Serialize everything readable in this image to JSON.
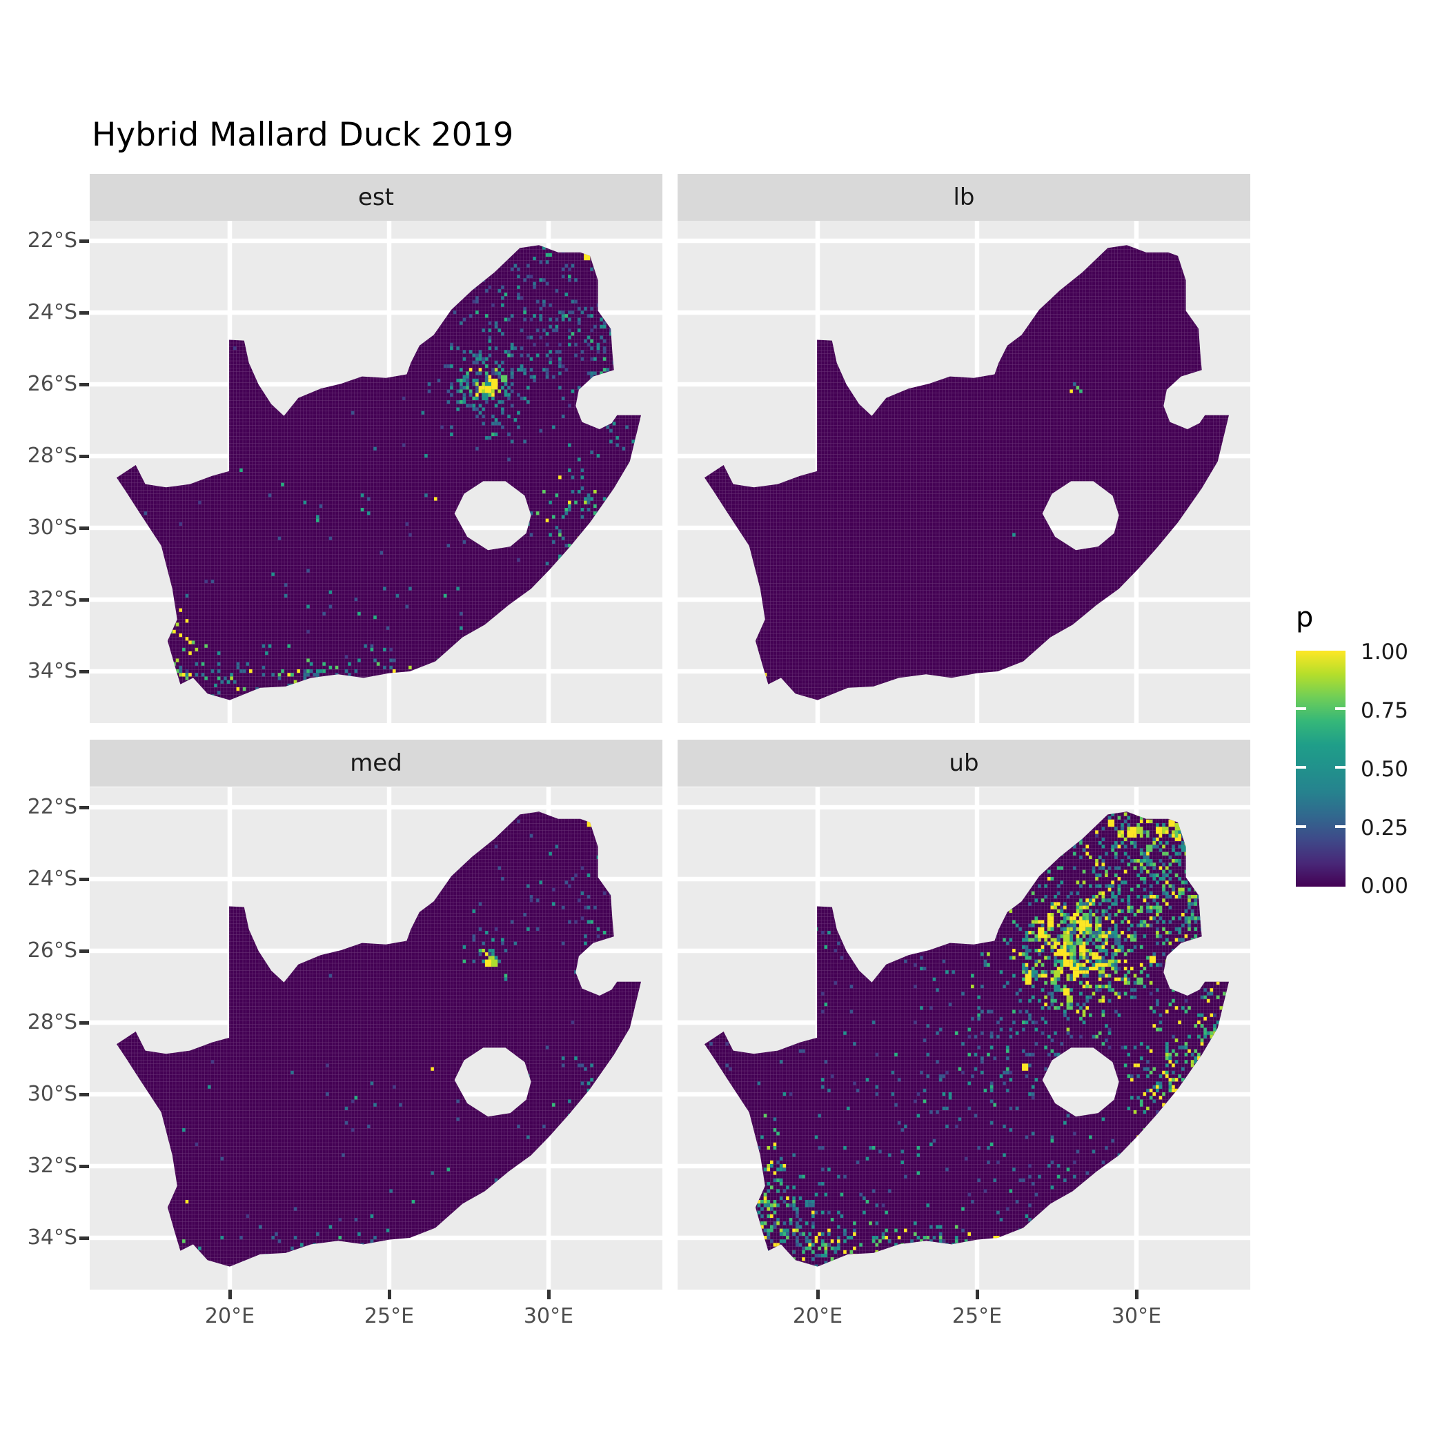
{
  "title": "Hybrid Mallard Duck 2019",
  "legend": {
    "title": "p",
    "tick_labels": [
      "1.00",
      "0.75",
      "0.50",
      "0.25",
      "0.00"
    ],
    "viridis_stops": [
      "#440154",
      "#482878",
      "#3e4a89",
      "#31688e",
      "#26828e",
      "#21918c",
      "#1f9e89",
      "#35b779",
      "#6ece58",
      "#b5de2b",
      "#fde725"
    ]
  },
  "chart_data": {
    "type": "faceted-raster-map",
    "title": "Hybrid Mallard Duck 2019",
    "region": "South Africa",
    "variable": "p",
    "value_range": [
      0,
      1
    ],
    "legend_breaks": [
      0.0,
      0.25,
      0.5,
      0.75,
      1.0
    ],
    "x_ticks": [
      {
        "label": "20°E",
        "lon": 20
      },
      {
        "label": "25°E",
        "lon": 25
      },
      {
        "label": "30°E",
        "lon": 30
      }
    ],
    "y_ticks": [
      {
        "label": "22°S",
        "lat": 22
      },
      {
        "label": "24°S",
        "lat": 24
      },
      {
        "label": "26°S",
        "lat": 26
      },
      {
        "label": "28°S",
        "lat": 28
      },
      {
        "label": "30°S",
        "lat": 30
      },
      {
        "label": "32°S",
        "lat": 32
      },
      {
        "label": "34°S",
        "lat": 34
      }
    ],
    "colors": {
      "base_cell": "#440154",
      "panel_bg": "#EBEBEB",
      "strip_bg": "#D9D9D9",
      "grid_line": "#FFFFFF",
      "axis_text": "#4D4D4D",
      "tick_mark": "#333333",
      "strip_text": "#1A1A1A"
    },
    "palettes": {
      "faint": [
        [
          "#3b528b",
          5
        ],
        [
          "#2c728e",
          3
        ],
        [
          "#21918c",
          2
        ],
        [
          "#443983",
          3
        ],
        [
          "#28ae80",
          1
        ]
      ],
      "teal": [
        [
          "#21918c",
          3
        ],
        [
          "#26828e",
          2
        ],
        [
          "#31688e",
          3
        ],
        [
          "#35b779",
          1
        ],
        [
          "#3b528b",
          2
        ]
      ],
      "mixGreen": [
        [
          "#21918c",
          3
        ],
        [
          "#2c728e",
          2
        ],
        [
          "#35b779",
          2
        ],
        [
          "#5ec962",
          1
        ],
        [
          "#addc30",
          1
        ],
        [
          "#fde725",
          1
        ],
        [
          "#31688e",
          2
        ]
      ],
      "coast": [
        [
          "#fde725",
          3
        ],
        [
          "#5ec962",
          2
        ],
        [
          "#21918c",
          3
        ],
        [
          "#2c728e",
          2
        ],
        [
          "#35b779",
          2
        ],
        [
          "#addc30",
          1
        ]
      ],
      "hot": [
        [
          "#fde725",
          5
        ],
        [
          "#addc30",
          2
        ],
        [
          "#5ec962",
          2
        ],
        [
          "#21918c",
          1
        ]
      ]
    },
    "facets": [
      {
        "label": "est",
        "clusters": [
          [
            28.0,
            26.0,
            0.75,
            0.65,
            170,
            "teal"
          ],
          [
            28.05,
            26.0,
            0.22,
            0.28,
            22,
            "hot"
          ],
          [
            30.1,
            24.1,
            1.7,
            1.15,
            240,
            "faint"
          ],
          [
            31.9,
            25.3,
            0.8,
            1.5,
            110,
            "teal"
          ],
          [
            31.05,
            29.7,
            0.65,
            0.9,
            70,
            "mixGreen"
          ],
          [
            22.3,
            34.15,
            2.5,
            0.3,
            130,
            "mixGreen"
          ],
          [
            18.5,
            33.7,
            0.3,
            0.6,
            35,
            "coast"
          ],
          [
            24.5,
            31.5,
            4.5,
            3.0,
            130,
            "faint"
          ]
        ],
        "singles": [
          [
            31.15,
            22.35,
            "#fde725",
            2
          ],
          [
            26.4,
            29.15,
            "#fde725",
            1
          ],
          [
            29.55,
            22.45,
            "#21918c",
            1
          ],
          [
            18.45,
            32.95,
            "#fde725",
            1
          ],
          [
            20.2,
            34.42,
            "#fde725",
            1
          ],
          [
            25.1,
            33.95,
            "#fde725",
            1
          ],
          [
            28.1,
            25.78,
            "#fde725",
            1
          ],
          [
            28.1,
            25.88,
            "#fde725",
            1
          ],
          [
            28.0,
            26.06,
            "#fde725",
            2
          ],
          [
            28.2,
            26.12,
            "#addc30",
            1
          ]
        ]
      },
      {
        "label": "lb",
        "clusters": [],
        "singles": [
          [
            27.95,
            26.1,
            "#fde725",
            1
          ],
          [
            28.1,
            26.02,
            "#5ec962",
            1
          ],
          [
            28.18,
            26.12,
            "#35b779",
            1
          ],
          [
            28.02,
            25.9,
            "#31688e",
            1
          ],
          [
            26.1,
            30.15,
            "#21918c",
            1
          ],
          [
            18.35,
            34.02,
            "#fde725",
            1
          ],
          [
            23.4,
            34.15,
            "#26828e",
            1
          ],
          [
            31.75,
            22.5,
            "#31688e",
            1
          ]
        ]
      },
      {
        "label": "med",
        "clusters": [
          [
            28.05,
            26.05,
            0.32,
            0.32,
            26,
            "teal"
          ],
          [
            28.05,
            26.02,
            0.12,
            0.15,
            7,
            "hot"
          ],
          [
            30.2,
            24.3,
            1.7,
            1.1,
            60,
            "faint"
          ],
          [
            31.9,
            25.5,
            0.7,
            1.3,
            40,
            "faint"
          ],
          [
            23.0,
            34.25,
            2.2,
            0.25,
            45,
            "teal"
          ],
          [
            31.0,
            30.0,
            0.5,
            0.8,
            28,
            "teal"
          ],
          [
            24.5,
            31.0,
            4.0,
            2.5,
            50,
            "faint"
          ]
        ],
        "singles": [
          [
            31.2,
            22.35,
            "#fde725",
            2
          ],
          [
            26.35,
            29.2,
            "#fde725",
            1
          ],
          [
            18.6,
            32.95,
            "#fde725",
            1
          ],
          [
            25.8,
            34.05,
            "#fde725",
            1
          ],
          [
            18.55,
            34.05,
            "#5ec962",
            1
          ],
          [
            30.6,
            30.55,
            "#21918c",
            1
          ]
        ]
      },
      {
        "label": "ub",
        "clusters": [
          [
            28.1,
            25.9,
            0.8,
            0.7,
            260,
            "hot"
          ],
          [
            28.0,
            26.05,
            1.4,
            1.0,
            300,
            "mixGreen"
          ],
          [
            30.3,
            23.9,
            1.8,
            1.2,
            500,
            "mixGreen"
          ],
          [
            31.6,
            24.8,
            0.9,
            1.6,
            200,
            "mixGreen"
          ],
          [
            31.05,
            29.8,
            0.7,
            1.0,
            160,
            "coast"
          ],
          [
            32.35,
            28.35,
            0.45,
            0.6,
            90,
            "coast"
          ],
          [
            21.5,
            34.25,
            2.8,
            0.35,
            230,
            "coast"
          ],
          [
            18.45,
            33.0,
            0.35,
            0.9,
            90,
            "coast"
          ],
          [
            19.6,
            33.6,
            0.9,
            0.6,
            90,
            "teal"
          ],
          [
            24.0,
            30.0,
            4.8,
            3.2,
            450,
            "faint"
          ],
          [
            30.5,
            22.5,
            1.3,
            0.3,
            70,
            "hot"
          ],
          [
            26.0,
            28.9,
            1.2,
            0.9,
            90,
            "teal"
          ]
        ],
        "singles": [
          [
            26.4,
            29.15,
            "#fde725",
            2
          ],
          [
            25.5,
            33.98,
            "#fde725",
            2
          ],
          [
            31.0,
            22.35,
            "#fde725",
            2
          ],
          [
            30.4,
            22.3,
            "#addc30",
            1
          ]
        ]
      }
    ],
    "map_outline": [
      [
        16.45,
        28.6
      ],
      [
        17.05,
        28.25
      ],
      [
        17.35,
        28.78
      ],
      [
        18.0,
        28.87
      ],
      [
        18.75,
        28.78
      ],
      [
        19.45,
        28.55
      ],
      [
        19.98,
        28.42
      ],
      [
        19.98,
        24.76
      ],
      [
        20.45,
        24.78
      ],
      [
        20.6,
        25.4
      ],
      [
        20.9,
        26.0
      ],
      [
        21.3,
        26.55
      ],
      [
        21.7,
        26.88
      ],
      [
        22.15,
        26.38
      ],
      [
        22.85,
        26.12
      ],
      [
        23.5,
        25.98
      ],
      [
        24.15,
        25.78
      ],
      [
        24.9,
        25.82
      ],
      [
        25.55,
        25.72
      ],
      [
        25.68,
        25.4
      ],
      [
        25.95,
        24.92
      ],
      [
        26.4,
        24.62
      ],
      [
        26.95,
        23.92
      ],
      [
        27.6,
        23.38
      ],
      [
        28.3,
        22.88
      ],
      [
        29.1,
        22.2
      ],
      [
        29.7,
        22.12
      ],
      [
        30.3,
        22.32
      ],
      [
        31.0,
        22.32
      ],
      [
        31.3,
        22.42
      ],
      [
        31.55,
        23.1
      ],
      [
        31.55,
        23.95
      ],
      [
        31.95,
        24.45
      ],
      [
        32.0,
        25.1
      ],
      [
        32.05,
        25.6
      ],
      [
        31.4,
        25.78
      ],
      [
        30.95,
        26.15
      ],
      [
        30.85,
        26.6
      ],
      [
        31.05,
        27.05
      ],
      [
        31.6,
        27.25
      ],
      [
        31.98,
        27.08
      ],
      [
        32.15,
        26.86
      ],
      [
        32.9,
        26.86
      ],
      [
        32.55,
        28.15
      ],
      [
        32.05,
        28.9
      ],
      [
        31.3,
        29.85
      ],
      [
        30.65,
        30.55
      ],
      [
        30.05,
        31.15
      ],
      [
        29.45,
        31.7
      ],
      [
        28.75,
        32.15
      ],
      [
        28.0,
        32.7
      ],
      [
        27.3,
        33.05
      ],
      [
        26.45,
        33.72
      ],
      [
        25.65,
        34.0
      ],
      [
        25.0,
        34.05
      ],
      [
        24.2,
        34.18
      ],
      [
        23.4,
        34.08
      ],
      [
        22.55,
        34.18
      ],
      [
        21.75,
        34.42
      ],
      [
        20.95,
        34.46
      ],
      [
        20.0,
        34.8
      ],
      [
        19.3,
        34.62
      ],
      [
        18.85,
        34.18
      ],
      [
        18.45,
        34.36
      ],
      [
        18.3,
        33.92
      ],
      [
        18.05,
        33.15
      ],
      [
        18.35,
        32.55
      ],
      [
        18.2,
        31.7
      ],
      [
        17.85,
        30.5
      ],
      [
        17.15,
        29.55
      ],
      [
        16.75,
        29.0
      ]
    ],
    "lesotho_hole": [
      [
        27.05,
        29.6
      ],
      [
        27.35,
        29.05
      ],
      [
        27.95,
        28.7
      ],
      [
        28.65,
        28.7
      ],
      [
        29.25,
        29.1
      ],
      [
        29.45,
        29.65
      ],
      [
        29.3,
        30.15
      ],
      [
        28.8,
        30.52
      ],
      [
        28.1,
        30.62
      ],
      [
        27.45,
        30.25
      ]
    ]
  }
}
